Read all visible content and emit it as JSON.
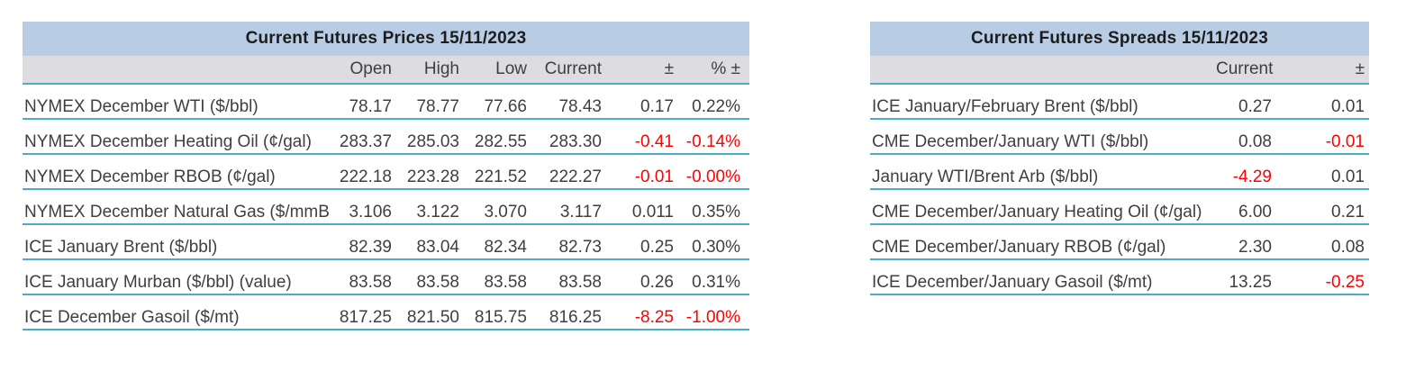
{
  "colors": {
    "title_bg": "#b8cce4",
    "header_bg": "#dcdce1",
    "rule_teal": "#4bacc6",
    "negative_red": "#ff0000",
    "text": "#3f3f3f"
  },
  "prices": {
    "title": "Current Futures Prices 15/11/2023",
    "headers": {
      "open": "Open",
      "high": "High",
      "low": "Low",
      "current": "Current",
      "chg": "±",
      "pct": "% ±"
    },
    "rows": [
      {
        "label": "NYMEX December WTI ($/bbl)",
        "open": "78.17",
        "high": "78.77",
        "low": "77.66",
        "current": "78.43",
        "chg": "0.17",
        "pct": "0.22%"
      },
      {
        "label": "NYMEX December Heating Oil (¢/gal)",
        "open": "283.37",
        "high": "285.03",
        "low": "282.55",
        "current": "283.30",
        "chg": "-0.41",
        "pct": "-0.14%"
      },
      {
        "label": "NYMEX December RBOB (¢/gal)",
        "open": "222.18",
        "high": "223.28",
        "low": "221.52",
        "current": "222.27",
        "chg": "-0.01",
        "pct": "-0.00%"
      },
      {
        "label": "NYMEX December Natural Gas ($/mmB",
        "open": "3.106",
        "high": "3.122",
        "low": "3.070",
        "current": "3.117",
        "chg": "0.011",
        "pct": "0.35%"
      },
      {
        "label": "ICE January Brent ($/bbl)",
        "open": "82.39",
        "high": "83.04",
        "low": "82.34",
        "current": "82.73",
        "chg": "0.25",
        "pct": "0.30%"
      },
      {
        "label": "ICE January Murban ($/bbl) (value)",
        "open": "83.58",
        "high": "83.58",
        "low": "83.58",
        "current": "83.58",
        "chg": "0.26",
        "pct": "0.31%"
      },
      {
        "label": "ICE December Gasoil ($/mt)",
        "open": "817.25",
        "high": "821.50",
        "low": "815.75",
        "current": "816.25",
        "chg": "-8.25",
        "pct": "-1.00%"
      }
    ]
  },
  "spreads": {
    "title": "Current Futures Spreads 15/11/2023",
    "headers": {
      "current": "Current",
      "chg": "±"
    },
    "rows": [
      {
        "label": "ICE January/February Brent ($/bbl)",
        "current": "0.27",
        "chg": "0.01"
      },
      {
        "label": "CME December/January WTI ($/bbl)",
        "current": "0.08",
        "chg": "-0.01"
      },
      {
        "label": "January WTI/Brent Arb ($/bbl)",
        "current": "-4.29",
        "chg": "0.01"
      },
      {
        "label": "CME December/January Heating Oil (¢/gal)",
        "current": "6.00",
        "chg": "0.21"
      },
      {
        "label": "CME December/January RBOB (¢/gal)",
        "current": "2.30",
        "chg": "0.08"
      },
      {
        "label": "ICE December/January Gasoil ($/mt)",
        "current": "13.25",
        "chg": "-0.25"
      }
    ]
  }
}
